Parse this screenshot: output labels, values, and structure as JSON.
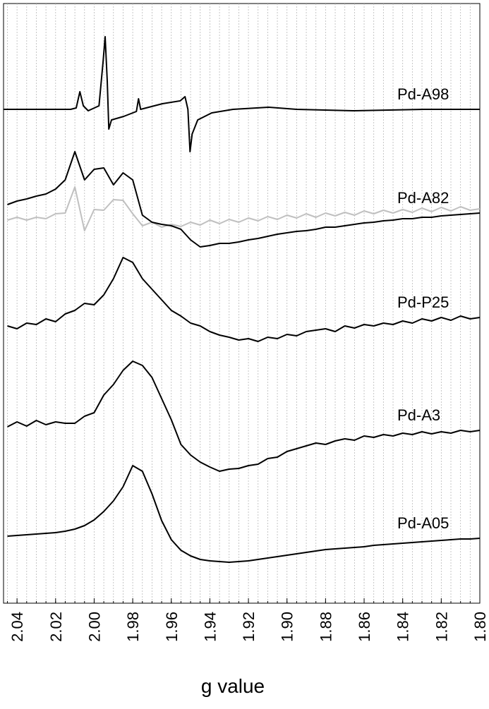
{
  "chart_data": {
    "type": "line",
    "x_label": "g value",
    "xlim": [
      2.047,
      1.8
    ],
    "ylim": [
      0,
      850
    ],
    "xticks": [
      2.04,
      2.02,
      {
        "value": 2,
        "label": "2.00"
      },
      1.98,
      1.96,
      1.94,
      1.92,
      {
        "value": 1.9,
        "label": "1.90"
      },
      1.88,
      1.86,
      1.84,
      1.82,
      {
        "value": 1.8,
        "label": "1.80"
      }
    ],
    "minor_xticks": [
      2.045,
      2.04,
      2.035,
      2.03,
      2.025,
      2.02,
      2.015,
      2.01,
      2.005,
      2,
      1.995,
      1.99,
      1.985,
      1.98,
      1.975,
      1.97,
      1.965,
      1.96,
      1.955,
      1.95,
      1.945,
      1.94,
      1.935,
      1.93,
      1.925,
      1.92,
      1.915,
      1.91,
      1.905,
      1.9,
      1.895,
      1.89,
      1.885,
      1.88,
      1.875,
      1.87,
      1.865,
      1.86,
      1.855,
      1.85,
      1.845,
      1.84,
      1.835,
      1.83,
      1.825,
      1.82,
      1.815,
      1.81,
      1.805
    ],
    "x": [
      2.045,
      2.04,
      2.035,
      2.03,
      2.025,
      2.02,
      2.015,
      2.01,
      2.005,
      2,
      1.995,
      1.99,
      1.985,
      1.98,
      1.975,
      1.97,
      1.965,
      1.96,
      1.955,
      1.95,
      1.945,
      1.94,
      1.935,
      1.93,
      1.925,
      1.92,
      1.915,
      1.91,
      1.905,
      1.9,
      1.895,
      1.89,
      1.885,
      1.88,
      1.875,
      1.87,
      1.865,
      1.86,
      1.855,
      1.85,
      1.845,
      1.84,
      1.835,
      1.83,
      1.825,
      1.82,
      1.815,
      1.81,
      1.805,
      1.8
    ],
    "series": [
      {
        "name": "Pd-A98",
        "color": "#000000",
        "x": [
          2.047,
          2.0122,
          2.0093,
          2.0074,
          2.0056,
          2.0031,
          1.9975,
          1.9953,
          1.9943,
          1.9932,
          1.9924,
          1.991,
          1.9847,
          1.9781,
          1.977,
          1.9759,
          1.9646,
          1.9554,
          1.9529,
          1.9514,
          1.9503,
          1.9492,
          1.9463,
          1.939,
          1.928,
          1.9096,
          1.895,
          1.8657,
          1.8291,
          1.8
        ],
        "values": [
          700,
          700,
          702,
          725,
          705,
          698,
          705,
          770,
          803,
          740,
          672,
          685,
          690,
          697,
          715,
          700,
          708,
          712,
          718,
          700,
          640,
          665,
          685,
          695,
          700,
          703,
          700,
          698,
          700,
          700
        ]
      },
      {
        "name": "Pd-A82",
        "color": "#000000",
        "values": [
          565,
          570,
          573,
          577,
          580,
          587,
          600,
          640,
          600,
          615,
          617,
          593,
          610,
          600,
          550,
          540,
          537,
          535,
          530,
          515,
          505,
          507,
          510,
          510,
          512,
          515,
          517,
          520,
          523,
          525,
          527,
          528,
          530,
          533,
          533,
          535,
          537,
          539,
          540,
          542,
          543,
          545,
          545,
          547,
          547,
          549,
          550,
          551,
          552,
          553
        ]
      },
      {
        "color": "#c0c0c0",
        "values": [
          543,
          547,
          543,
          547,
          545,
          552,
          553,
          590,
          528,
          558,
          557,
          572,
          571,
          552,
          535,
          540,
          533,
          537,
          534,
          540,
          536,
          543,
          538,
          544,
          540,
          546,
          542,
          548,
          544,
          550,
          546,
          552,
          547,
          553,
          549,
          554,
          550,
          556,
          552,
          557,
          553,
          558,
          554,
          560,
          555,
          561,
          556,
          562,
          557,
          559
        ]
      },
      {
        "name": "Pd-P25",
        "color": "#000000",
        "values": [
          393,
          389,
          397,
          395,
          403,
          399,
          410,
          415,
          425,
          423,
          437,
          460,
          490,
          483,
          460,
          445,
          430,
          415,
          407,
          397,
          393,
          385,
          380,
          377,
          373,
          375,
          371,
          377,
          375,
          381,
          379,
          385,
          387,
          389,
          385,
          393,
          390,
          395,
          393,
          397,
          395,
          400,
          397,
          403,
          400,
          405,
          401,
          407,
          403,
          405
        ]
      },
      {
        "name": "Pd-A3",
        "color": "#000000",
        "values": [
          250,
          257,
          251,
          259,
          253,
          257,
          255,
          255,
          265,
          270,
          295,
          310,
          330,
          343,
          337,
          320,
          290,
          260,
          225,
          210,
          200,
          193,
          187,
          190,
          191,
          195,
          197,
          205,
          207,
          215,
          219,
          223,
          227,
          225,
          230,
          233,
          231,
          237,
          235,
          239,
          237,
          241,
          239,
          243,
          240,
          243,
          241,
          245,
          243,
          245
        ]
      },
      {
        "name": "Pd-A05",
        "color": "#000000",
        "values": [
          95,
          96,
          97,
          98,
          99,
          100,
          102,
          105,
          110,
          118,
          130,
          145,
          165,
          195,
          187,
          155,
          117,
          90,
          75,
          67,
          62,
          60,
          59,
          58,
          59,
          60,
          62,
          64,
          66,
          68,
          70,
          72,
          74,
          76,
          77,
          78,
          79,
          80,
          82,
          83,
          84,
          85,
          86,
          87,
          88,
          89,
          90,
          91,
          91,
          92
        ]
      }
    ]
  }
}
